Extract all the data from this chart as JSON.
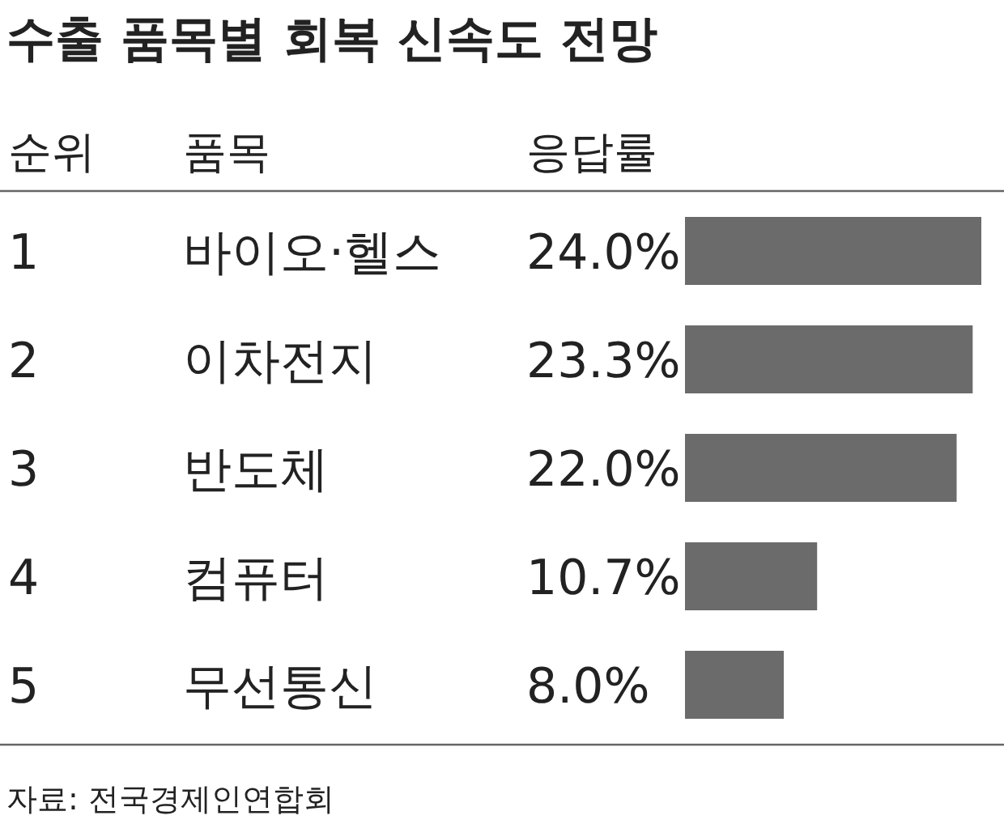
{
  "chart_data": {
    "type": "bar",
    "orientation": "horizontal",
    "title": "수출 품목별 회복 신속도 전망",
    "categories": [
      "바이오·헬스",
      "이차전지",
      "반도체",
      "컴퓨터",
      "무선통신"
    ],
    "values": [
      24.0,
      23.3,
      22.0,
      10.7,
      8.0
    ],
    "value_labels": [
      "24.0%",
      "23.3%",
      "22.0%",
      "10.7%",
      "8.0%"
    ],
    "color": "#6b6b6b",
    "annotations": [
      "순위",
      "품목",
      "응답률",
      "1",
      "2",
      "3",
      "4",
      "5",
      "자료: 전국경제인연합회"
    ]
  }
}
